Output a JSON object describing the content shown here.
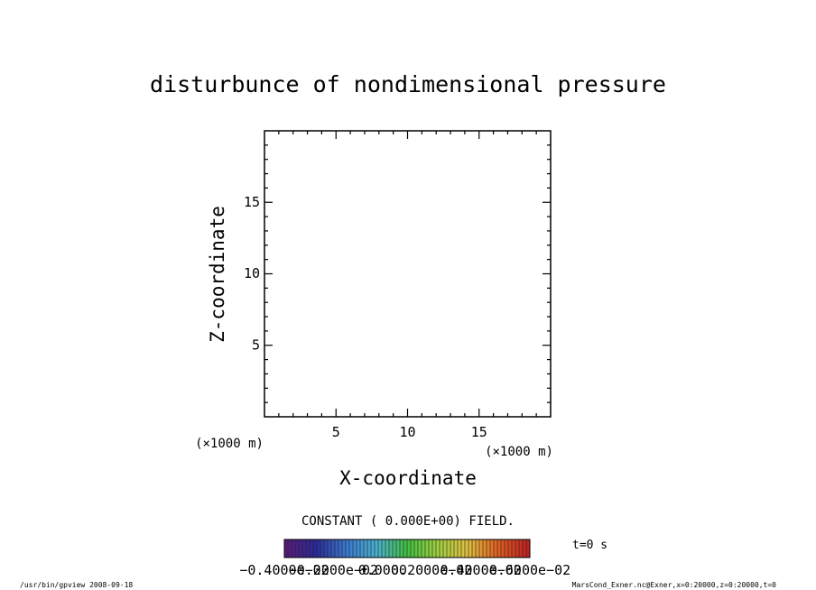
{
  "chart_data": {
    "type": "heatmap",
    "title": "disturbunce of nondimensional pressure",
    "xlabel": "X-coordinate",
    "ylabel": "Z-coordinate",
    "x_unit": "(×1000 m)",
    "y_unit": "(×1000 m)",
    "xlim": [
      0,
      20
    ],
    "ylim": [
      0,
      20
    ],
    "x_major_ticks": [
      5,
      10,
      15
    ],
    "y_major_ticks": [
      5,
      10,
      15
    ],
    "x_tick_labels": [
      "5",
      "10",
      "15"
    ],
    "y_tick_labels": [
      "5",
      "10",
      "15"
    ],
    "minor_tick_step": 1,
    "field_message": "CONSTANT ( 0.000E+00) FIELD.",
    "time_label": "t=0 s",
    "colorbar_labels": [
      "−0.4000e−02",
      "−0.2000e−02",
      "0.0000",
      "0.2000e−02",
      "0.4000e−02",
      "0.6000e−02"
    ],
    "colorbar_values": [
      -0.004,
      -0.002,
      0.0,
      0.002,
      0.004,
      0.006
    ],
    "colorbar_colors": [
      "#5a1a7a",
      "#2a2a9a",
      "#3a7ad0",
      "#4ab0d0",
      "#40c040",
      "#a0d040",
      "#e0c040",
      "#e06020",
      "#c02020"
    ],
    "footer_left": "/usr/bin/gpview   2008-09-18",
    "footer_right": "MarsCond_Exner.nc@Exner,x=0:20000,z=0:20000,t=0"
  }
}
